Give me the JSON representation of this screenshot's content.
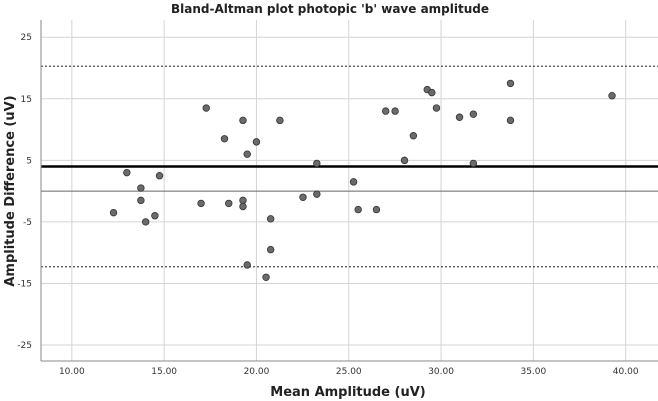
{
  "chart_data": {
    "type": "scatter",
    "title": "Bland-Altman plot photopic 'b' wave amplitude",
    "xlabel": "Mean Amplitude (uV)",
    "ylabel": "Amplitude Difference (uV)",
    "xlim": [
      8.33,
      41.75
    ],
    "ylim": [
      -27.6,
      27.8
    ],
    "xticks": [
      10,
      15,
      20,
      25,
      30,
      35,
      40
    ],
    "xtick_labels": [
      "10.00",
      "15.00",
      "20.00",
      "25.00",
      "30.00",
      "35.00",
      "40.00"
    ],
    "yticks": [
      25,
      15,
      5,
      -5,
      -15,
      -25
    ],
    "ytick_labels": [
      "25",
      "15",
      "5",
      "-5",
      "-15",
      "-25"
    ],
    "grid": true,
    "reference_lines": [
      {
        "name": "zero",
        "y": 0,
        "style": "solid-thin"
      },
      {
        "name": "mean-difference",
        "y": 4.0,
        "style": "solid-thick"
      },
      {
        "name": "upper-limit-of-agreement",
        "y": 20.3,
        "style": "dashed"
      },
      {
        "name": "lower-limit-of-agreement",
        "y": -12.3,
        "style": "dashed"
      }
    ],
    "points": [
      [
        12.26,
        -3.5
      ],
      [
        12.98,
        3.0
      ],
      [
        13.74,
        0.5
      ],
      [
        13.74,
        -1.5
      ],
      [
        14.0,
        -5.0
      ],
      [
        14.5,
        -4.0
      ],
      [
        14.75,
        2.5
      ],
      [
        17.0,
        -2.0
      ],
      [
        17.28,
        13.5
      ],
      [
        18.27,
        8.5
      ],
      [
        18.5,
        -2.0
      ],
      [
        19.27,
        11.5
      ],
      [
        19.27,
        -1.5
      ],
      [
        19.27,
        -2.5
      ],
      [
        19.5,
        6.0
      ],
      [
        19.5,
        -12.0
      ],
      [
        20.0,
        8.0
      ],
      [
        20.52,
        -14.0
      ],
      [
        20.77,
        -4.5
      ],
      [
        20.77,
        -9.5
      ],
      [
        21.27,
        11.5
      ],
      [
        22.52,
        -1.0
      ],
      [
        23.27,
        4.5
      ],
      [
        23.27,
        -0.5
      ],
      [
        25.26,
        1.5
      ],
      [
        25.51,
        -3.0
      ],
      [
        26.5,
        -3.0
      ],
      [
        27.0,
        13.0
      ],
      [
        27.51,
        13.0
      ],
      [
        28.02,
        5.0
      ],
      [
        28.5,
        9.0
      ],
      [
        29.25,
        16.5
      ],
      [
        29.5,
        16.0
      ],
      [
        29.75,
        13.5
      ],
      [
        31.0,
        12.0
      ],
      [
        31.75,
        12.5
      ],
      [
        31.75,
        4.5
      ],
      [
        33.76,
        17.5
      ],
      [
        33.76,
        11.5
      ],
      [
        39.26,
        15.5
      ]
    ],
    "colors": {
      "point": "#6b6b6b",
      "grid": "#d4d4d4",
      "line": "#000000"
    }
  }
}
